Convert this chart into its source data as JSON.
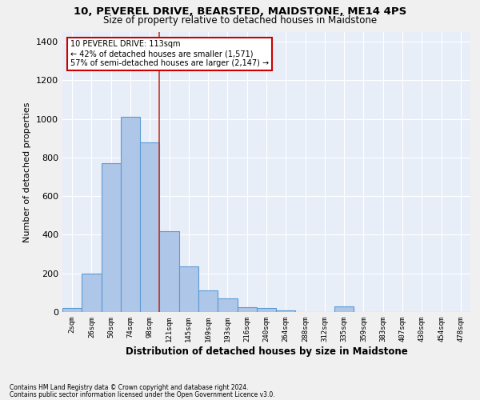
{
  "title_line1": "10, PEVEREL DRIVE, BEARSTED, MAIDSTONE, ME14 4PS",
  "title_line2": "Size of property relative to detached houses in Maidstone",
  "xlabel": "Distribution of detached houses by size in Maidstone",
  "ylabel": "Number of detached properties",
  "footnote1": "Contains HM Land Registry data © Crown copyright and database right 2024.",
  "footnote2": "Contains public sector information licensed under the Open Government Licence v3.0.",
  "annotation_line1": "10 PEVEREL DRIVE: 113sqm",
  "annotation_line2": "← 42% of detached houses are smaller (1,571)",
  "annotation_line3": "57% of semi-detached houses are larger (2,147) →",
  "bar_labels": [
    "2sqm",
    "26sqm",
    "50sqm",
    "74sqm",
    "98sqm",
    "121sqm",
    "145sqm",
    "169sqm",
    "193sqm",
    "216sqm",
    "240sqm",
    "264sqm",
    "288sqm",
    "312sqm",
    "335sqm",
    "359sqm",
    "383sqm",
    "407sqm",
    "430sqm",
    "454sqm",
    "478sqm"
  ],
  "bar_values": [
    20,
    200,
    770,
    1010,
    880,
    420,
    235,
    110,
    70,
    25,
    20,
    10,
    0,
    0,
    30,
    0,
    0,
    0,
    0,
    0,
    0
  ],
  "bar_color": "#aec6e8",
  "bar_edge_color": "#5b9bd5",
  "vline_color": "#c0392b",
  "vline_pos": 4.5,
  "ylim_max": 1450,
  "yticks": [
    0,
    200,
    400,
    600,
    800,
    1000,
    1200,
    1400
  ],
  "plot_bg_color": "#e8eef8",
  "grid_color": "#ffffff",
  "fig_bg_color": "#f0f0f0",
  "annotation_box_facecolor": "#ffffff",
  "annotation_box_edgecolor": "#cc0000"
}
